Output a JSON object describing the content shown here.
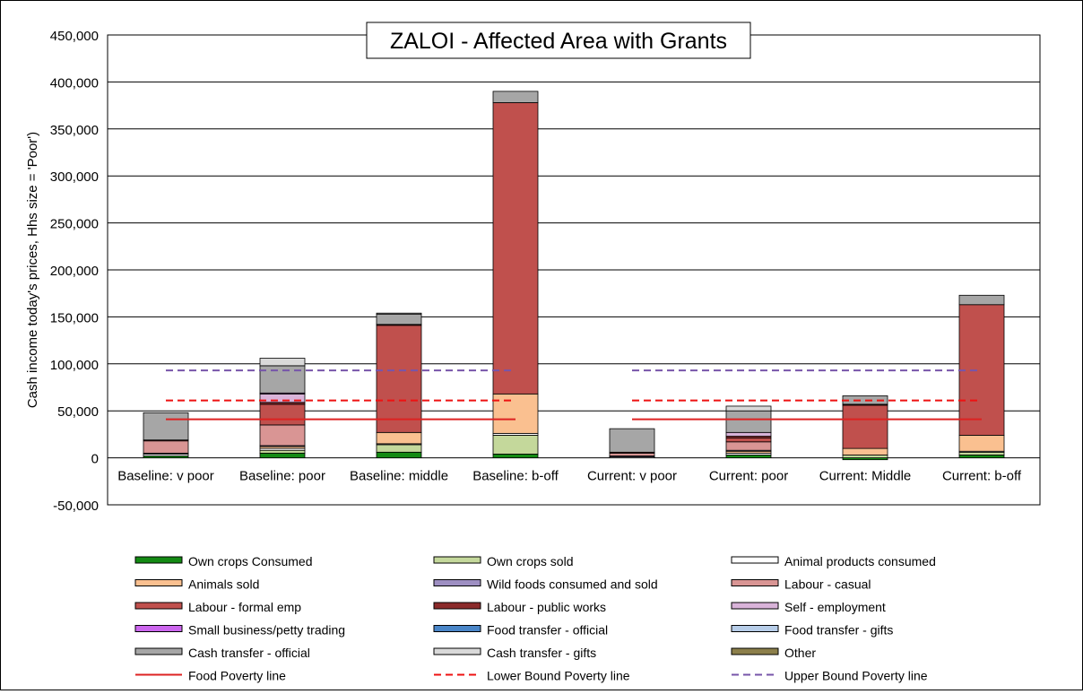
{
  "chart_data": {
    "type": "bar",
    "stacked": true,
    "title": "ZALOI - Affected Area with Grants",
    "ylabel": "Cash income today's prices, Hhs size = 'Poor')",
    "xlabel": "",
    "ylim": [
      -50000,
      450000
    ],
    "yticks": [
      -50000,
      0,
      50000,
      100000,
      150000,
      200000,
      250000,
      300000,
      350000,
      400000,
      450000
    ],
    "ytick_labels": [
      "-50,000",
      "0",
      "50,000",
      "100,000",
      "150,000",
      "200,000",
      "250,000",
      "300,000",
      "350,000",
      "400,000",
      "450,000"
    ],
    "grid": true,
    "legend_position": "bottom",
    "categories": [
      "Baseline: v poor",
      "Baseline: poor",
      "Baseline: middle",
      "Baseline: b-off",
      "Current: v poor",
      "Current: poor",
      "Current: Middle",
      "Current: b-off"
    ],
    "series": [
      {
        "name": "Own crops Consumed",
        "color": "#138a13",
        "values": [
          2000,
          5000,
          6000,
          4000,
          0,
          3000,
          -2000,
          3000
        ]
      },
      {
        "name": "Own crops sold",
        "color": "#c4d89b",
        "values": [
          0,
          3000,
          8000,
          20000,
          0,
          0,
          3000,
          3000
        ]
      },
      {
        "name": "Animal products consumed",
        "color": "#ffffff",
        "values": [
          2000,
          2000,
          1000,
          2000,
          1000,
          2000,
          0,
          1000
        ]
      },
      {
        "name": "Animals sold",
        "color": "#fac090",
        "values": [
          0,
          2000,
          12000,
          42000,
          0,
          2000,
          7000,
          17000
        ]
      },
      {
        "name": "Wild foods consumed and sold",
        "color": "#9e8fc2",
        "values": [
          1000,
          1000,
          0,
          0,
          1000,
          1000,
          0,
          0
        ]
      },
      {
        "name": "Labour - casual",
        "color": "#d99594",
        "values": [
          13000,
          22000,
          0,
          0,
          3000,
          9000,
          0,
          0
        ]
      },
      {
        "name": "Labour - formal emp",
        "color": "#c0504d",
        "values": [
          0,
          22000,
          114000,
          310000,
          0,
          4000,
          46000,
          139000
        ]
      },
      {
        "name": "Labour - public works",
        "color": "#8b2a2a",
        "values": [
          1000,
          2000,
          1000,
          0,
          1000,
          2000,
          1000,
          0
        ]
      },
      {
        "name": "Self - employment",
        "color": "#d9b3d9",
        "values": [
          0,
          9000,
          0,
          0,
          0,
          4000,
          0,
          0
        ]
      },
      {
        "name": "Small business/petty trading",
        "color": "#cc66ee",
        "values": [
          0,
          1000,
          0,
          0,
          0,
          0,
          0,
          0
        ]
      },
      {
        "name": "Food transfer - official",
        "color": "#4a86c8",
        "values": [
          0,
          0,
          0,
          0,
          0,
          0,
          0,
          0
        ]
      },
      {
        "name": "Food transfer - gifts",
        "color": "#b7cde8",
        "values": [
          0,
          0,
          0,
          0,
          0,
          0,
          0,
          0
        ]
      },
      {
        "name": "Cash transfer - official",
        "color": "#a6a6a6",
        "values": [
          29000,
          29000,
          11000,
          12000,
          25000,
          23000,
          9000,
          10000
        ]
      },
      {
        "name": "Cash transfer - gifts",
        "color": "#d9d9d9",
        "values": [
          0,
          8000,
          1000,
          0,
          0,
          5000,
          0,
          0
        ]
      },
      {
        "name": "Other",
        "color": "#8c7f4a",
        "values": [
          0,
          0,
          0,
          0,
          0,
          0,
          0,
          0
        ]
      }
    ],
    "lines": [
      {
        "name": "Food Poverty line",
        "color": "#dd2222",
        "style": "solid",
        "value": 41000
      },
      {
        "name": "Lower Bound Poverty line",
        "color": "#ee1111",
        "style": "dashed",
        "value": 61000
      },
      {
        "name": "Upper Bound Poverty line",
        "color": "#7755aa",
        "style": "dashed",
        "value": 93000
      }
    ]
  }
}
